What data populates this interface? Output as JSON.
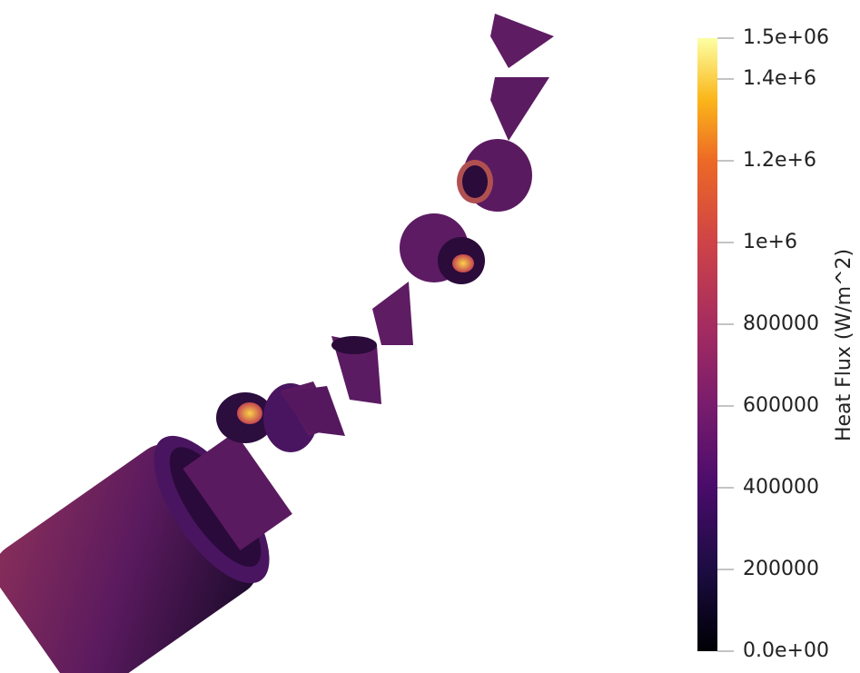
{
  "colorbar": {
    "title": "Heat Flux (W/m^2)",
    "range": [
      0,
      1500000
    ],
    "ticks": [
      {
        "value": 0,
        "label": "0.0e+00"
      },
      200000,
      400000,
      600000,
      800000,
      {
        "value": 1000000,
        "label": "1e+6"
      },
      {
        "value": 1200000,
        "label": "1.2e+6"
      },
      {
        "value": 1400000,
        "label": "1.4e+6"
      },
      {
        "value": 1500000,
        "label": "1.5e+06"
      }
    ]
  }
}
